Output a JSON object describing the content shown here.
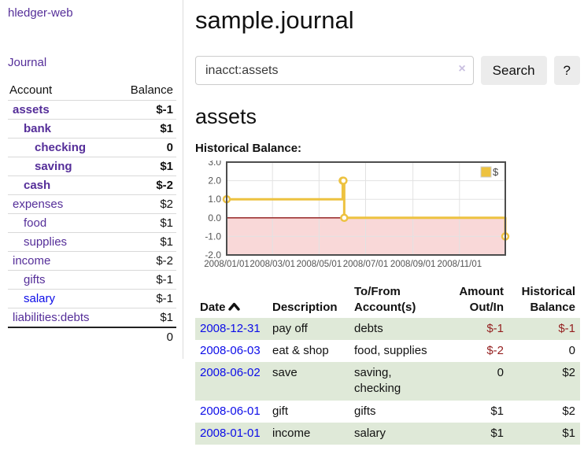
{
  "app": {
    "brand": "hledger-web",
    "nav_journal": "Journal"
  },
  "colors": {
    "link_purple": "#552e99",
    "link_blue": "#0c0ce8",
    "negative_strong": "#941f1f",
    "negative_soft": "#c47c7c",
    "row_stripe_green": "#dfe9d8"
  },
  "sidebar": {
    "table_headers": {
      "account": "Account",
      "balance": "Balance"
    },
    "accounts": [
      {
        "name": "assets",
        "balance": "$-1",
        "indent": 0,
        "bold": true,
        "neg": "strong"
      },
      {
        "name": "bank",
        "balance": "$1",
        "indent": 1,
        "bold": true,
        "neg": "none"
      },
      {
        "name": "checking",
        "balance": "0",
        "indent": 2,
        "bold": true,
        "neg": "none"
      },
      {
        "name": "saving",
        "balance": "$1",
        "indent": 2,
        "bold": true,
        "neg": "none"
      },
      {
        "name": "cash",
        "balance": "$-2",
        "indent": 1,
        "bold": true,
        "neg": "strong"
      },
      {
        "name": "expenses",
        "balance": "$2",
        "indent": 0,
        "bold": false,
        "neg": "none"
      },
      {
        "name": "food",
        "balance": "$1",
        "indent": 1,
        "bold": false,
        "neg": "none"
      },
      {
        "name": "supplies",
        "balance": "$1",
        "indent": 1,
        "bold": false,
        "neg": "none"
      },
      {
        "name": "income",
        "balance": "$-2",
        "indent": 0,
        "bold": false,
        "neg": "soft"
      },
      {
        "name": "gifts",
        "balance": "$-1",
        "indent": 1,
        "bold": false,
        "neg": "soft"
      },
      {
        "name": "salary",
        "balance": "$-1",
        "indent": 1,
        "bold": false,
        "neg": "soft",
        "link_color": "blue"
      },
      {
        "name": "liabilities:debts",
        "balance": "$1",
        "indent": 0,
        "bold": false,
        "neg": "none"
      }
    ],
    "total": "0"
  },
  "header": {
    "title": "sample.journal"
  },
  "search": {
    "value": "inacct:assets",
    "clear_label": "×",
    "button": "Search",
    "help_button": "?"
  },
  "account_page": {
    "heading": "assets",
    "chart_label": "Historical Balance:"
  },
  "chart_data": {
    "type": "line",
    "step": true,
    "title": "Historical Balance",
    "series": [
      {
        "name": "$",
        "color": "#edc240",
        "points": [
          [
            "2008-01-01",
            1
          ],
          [
            "2008-06-01",
            2
          ],
          [
            "2008-06-02",
            2
          ],
          [
            "2008-06-03",
            0
          ],
          [
            "2008-12-31",
            -1
          ]
        ]
      }
    ],
    "xlim": [
      "2008-01-01",
      "2008-12-31"
    ],
    "ylim": [
      -2,
      3
    ],
    "xticks": [
      "2008/01/01",
      "2008/03/01",
      "2008/05/01",
      "2008/07/01",
      "2008/09/01",
      "2008/11/01"
    ],
    "yticks": [
      3,
      2,
      1,
      0,
      -1,
      -2
    ],
    "grid": true,
    "legend_position": "top-right",
    "negative_fill": "#f9d8d8",
    "zero_line_color": "#8e1414",
    "axis_label_color": "#545454",
    "border_color": "#4d4d4d",
    "gridline_color": "#e2e2e2"
  },
  "register": {
    "headers": {
      "date": "Date",
      "description": "Description",
      "account": "To/From Account(s)",
      "amount": "Amount Out/In",
      "balance": "Historical Balance"
    },
    "rows": [
      {
        "date": "2008-12-31",
        "description": "pay off",
        "accounts": "debts",
        "amount": "$-1",
        "amount_neg": true,
        "balance": "$-1",
        "balance_neg": true
      },
      {
        "date": "2008-06-03",
        "description": "eat & shop",
        "accounts": "food, supplies",
        "amount": "$-2",
        "amount_neg": true,
        "balance": "0",
        "balance_neg": false
      },
      {
        "date": "2008-06-02",
        "description": "save",
        "accounts": "saving, checking",
        "amount": "0",
        "amount_neg": false,
        "balance": "$2",
        "balance_neg": false
      },
      {
        "date": "2008-06-01",
        "description": "gift",
        "accounts": "gifts",
        "amount": "$1",
        "amount_neg": false,
        "balance": "$2",
        "balance_neg": false
      },
      {
        "date": "2008-01-01",
        "description": "income",
        "accounts": "salary",
        "amount": "$1",
        "amount_neg": false,
        "balance": "$1",
        "balance_neg": false
      }
    ]
  }
}
